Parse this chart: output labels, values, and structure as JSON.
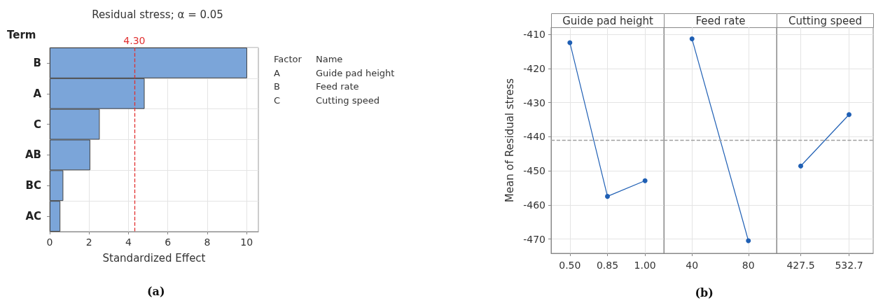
{
  "chart_data": [
    {
      "type": "bar",
      "orientation": "horizontal",
      "title": "Residual stress; α = 0.05",
      "xlabel": "Standardized Effect",
      "ylabel": "Term",
      "categories": [
        "B",
        "A",
        "C",
        "AB",
        "BC",
        "AC"
      ],
      "values": [
        10.03,
        4.82,
        2.54,
        2.06,
        0.69,
        0.54
      ],
      "color": "#7ba5d9",
      "xlim": [
        0,
        10.6
      ],
      "xticks": [
        0,
        2,
        4,
        6,
        8,
        10
      ],
      "grid": true,
      "ref_lines": [
        {
          "axis": "x",
          "value": 4.3,
          "label": "4.30",
          "color": "#e03030",
          "line_style": "dashed"
        }
      ],
      "annotations": [
        "Factor",
        "Name",
        "A",
        "Guide pad height",
        "B",
        "Feed rate",
        "C",
        "Cutting speed",
        "(a)"
      ]
    },
    {
      "type": "line",
      "title": "Guide pad height",
      "ylabel": "Mean of Residual stress",
      "categories": [
        "0.50",
        "0.85",
        "1.00"
      ],
      "series": [
        {
          "color": "#1f5fb4",
          "values": [
            -412.4,
            -457.5,
            -452.9
          ]
        }
      ],
      "ylim": [
        -474.2,
        -407.9
      ],
      "yticks": [
        -410,
        -420,
        -430,
        -440,
        -450,
        -460,
        -470
      ],
      "grid": true,
      "marker": "circle",
      "ref_lines": [
        {
          "axis": "y",
          "value": -441.1,
          "color": "#a0a0a0",
          "line_style": "dashed"
        }
      ]
    },
    {
      "type": "line",
      "title": "Feed rate",
      "categories": [
        "40",
        "80"
      ],
      "series": [
        {
          "color": "#1f5fb4",
          "values": [
            -411.3,
            -470.5
          ]
        }
      ],
      "ylim": [
        -474.2,
        -407.9
      ],
      "yticks": [
        -410,
        -420,
        -430,
        -440,
        -450,
        -460,
        -470
      ],
      "grid": true,
      "marker": "circle",
      "tick_labels": "x",
      "ref_lines": [
        {
          "axis": "y",
          "value": -441.1,
          "color": "#a0a0a0",
          "line_style": "dashed"
        }
      ],
      "annotations": [
        "(b)"
      ]
    },
    {
      "type": "line",
      "title": "Cutting speed",
      "categories": [
        "427.5",
        "532.7"
      ],
      "series": [
        {
          "color": "#1f5fb4",
          "values": [
            -448.6,
            -433.5
          ]
        }
      ],
      "ylim": [
        -474.2,
        -407.9
      ],
      "yticks": [
        -410,
        -420,
        -430,
        -440,
        -450,
        -460,
        -470
      ],
      "grid": true,
      "marker": "circle",
      "tick_labels": "x",
      "ref_lines": [
        {
          "axis": "y",
          "value": -441.1,
          "color": "#a0a0a0",
          "line_style": "dashed"
        }
      ]
    }
  ]
}
